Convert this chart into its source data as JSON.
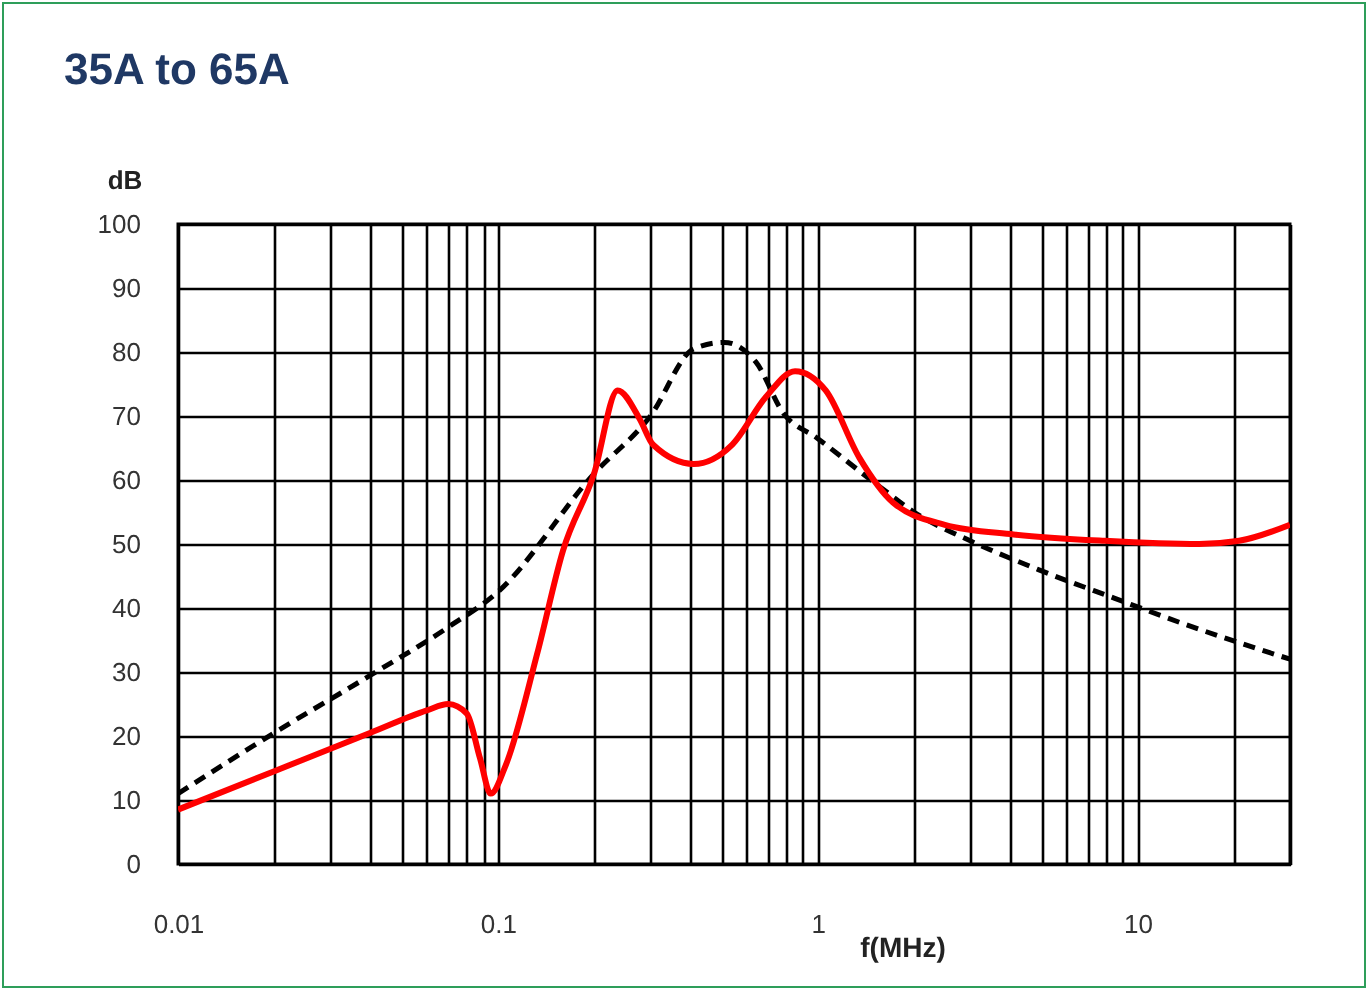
{
  "chart_data": {
    "type": "line",
    "title": "35A to 65A",
    "xlabel": "f(MHz)",
    "ylabel": "dB",
    "log": "x",
    "grid": true,
    "xlim": [
      0.01,
      30
    ],
    "ylim": [
      0,
      100
    ],
    "xticks": [
      0.01,
      {
        "value": 0.02,
        "label": null
      },
      {
        "value": 0.03,
        "label": null
      },
      {
        "value": 0.04,
        "label": null
      },
      {
        "value": 0.05,
        "label": null
      },
      {
        "value": 0.06,
        "label": null
      },
      {
        "value": 0.07,
        "label": null
      },
      {
        "value": 0.08,
        "label": null
      },
      {
        "value": 0.09,
        "label": null
      },
      0.1,
      {
        "value": 0.2,
        "label": null
      },
      {
        "value": 0.3,
        "label": null
      },
      {
        "value": 0.4,
        "label": null
      },
      {
        "value": 0.5,
        "label": null
      },
      {
        "value": 0.6,
        "label": null
      },
      {
        "value": 0.7,
        "label": null
      },
      {
        "value": 0.8,
        "label": null
      },
      {
        "value": 0.9,
        "label": null
      },
      1,
      {
        "value": 2,
        "label": null
      },
      {
        "value": 3,
        "label": null
      },
      {
        "value": 4,
        "label": null
      },
      {
        "value": 5,
        "label": null
      },
      {
        "value": 6,
        "label": null
      },
      {
        "value": 7,
        "label": null
      },
      {
        "value": 8,
        "label": null
      },
      {
        "value": 9,
        "label": null
      },
      10,
      {
        "value": 20,
        "label": null
      },
      {
        "value": 30,
        "label": null
      }
    ],
    "yticks": [
      0,
      10,
      20,
      30,
      40,
      50,
      60,
      70,
      80,
      90,
      100
    ],
    "series": [
      {
        "color": "#000000",
        "line_style": "dashed",
        "x": [
          0.01,
          0.02,
          0.04,
          0.07,
          0.1,
          0.2,
          0.3,
          0.41,
          0.51,
          0.64,
          0.78,
          1.0,
          1.56,
          2.0,
          3.0,
          4.9,
          8.5,
          14,
          30
        ],
        "values": [
          11,
          20.5,
          29.5,
          37,
          42.5,
          61,
          70,
          80.5,
          81.5,
          78.5,
          70.5,
          66.5,
          59,
          55,
          50.5,
          46,
          41.5,
          37.5,
          32
        ]
      },
      {
        "color": "#ff0000",
        "line_style": "solid",
        "x": [
          0.01,
          0.02,
          0.04,
          0.06,
          0.07,
          0.08,
          0.088,
          0.095,
          0.106,
          0.133,
          0.16,
          0.2,
          0.237,
          0.278,
          0.306,
          0.41,
          0.54,
          0.69,
          0.85,
          1.06,
          1.35,
          1.72,
          2.5,
          4.1,
          7.9,
          15.6,
          20.8,
          30
        ],
        "values": [
          8.5,
          14.5,
          20.5,
          24,
          25,
          23.5,
          16.5,
          11,
          15.5,
          33,
          49,
          61,
          74,
          69.5,
          65.5,
          62.5,
          65.5,
          73,
          77,
          74,
          63.5,
          56.5,
          53,
          51.5,
          50.5,
          50,
          50.5,
          53
        ]
      }
    ]
  }
}
